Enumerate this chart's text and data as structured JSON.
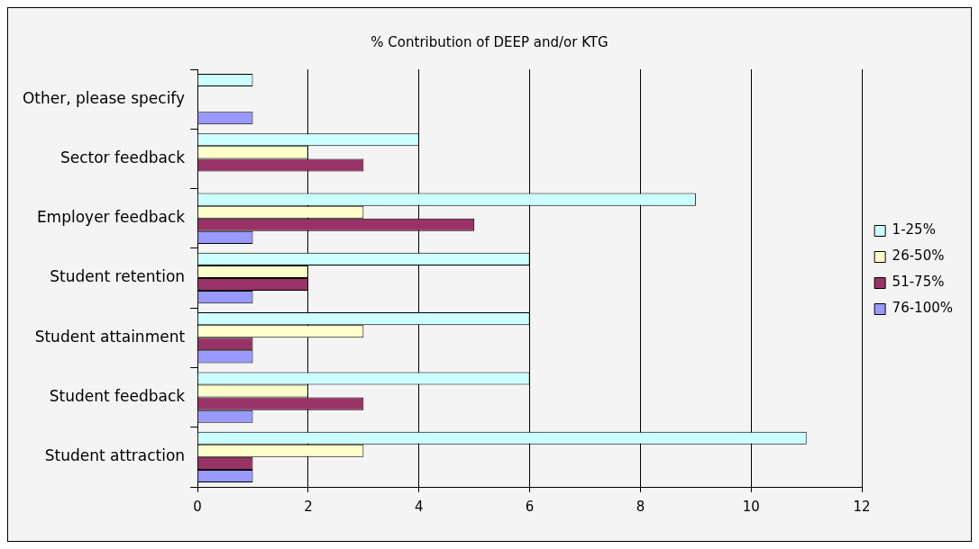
{
  "chart_data": {
    "type": "bar",
    "orientation": "horizontal",
    "title": "% Contribution of DEEP and/or KTG",
    "categories": [
      "Other, please specify",
      "Sector feedback",
      "Employer feedback",
      "Student retention",
      "Student attainment",
      "Student feedback",
      "Student attraction"
    ],
    "series": [
      {
        "name": "1-25%",
        "color": "#ccffff",
        "values": [
          1,
          4,
          9,
          6,
          6,
          6,
          11
        ]
      },
      {
        "name": "26-50%",
        "color": "#ffffcc",
        "values": [
          null,
          2,
          3,
          2,
          3,
          2,
          3
        ]
      },
      {
        "name": "51-75%",
        "color": "#993366",
        "values": [
          null,
          3,
          5,
          2,
          1,
          3,
          1
        ]
      },
      {
        "name": "76-100%",
        "color": "#9999ff",
        "values": [
          1,
          null,
          1,
          1,
          1,
          1,
          1
        ]
      }
    ],
    "xlim": [
      0,
      12
    ],
    "xticks": [
      0,
      2,
      4,
      6,
      8,
      10,
      12
    ],
    "grid": "x",
    "legend": "right"
  }
}
